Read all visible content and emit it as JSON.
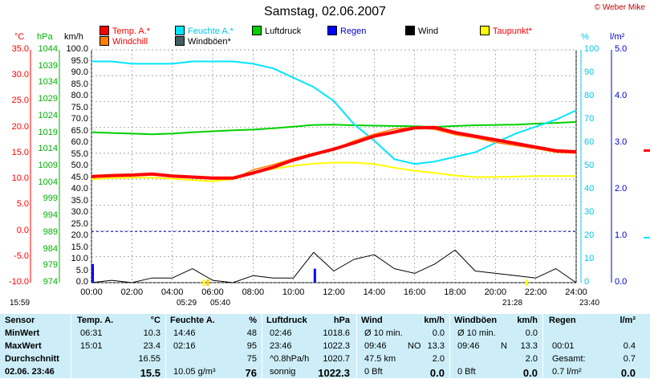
{
  "title": "Samstag, 02.06.2007",
  "copyright": "© Weber Mike",
  "legend": [
    {
      "label": "Temp. A.*",
      "color": "#ff0000",
      "text_color": "#ff0000"
    },
    {
      "label": "Feuchte A.*",
      "color": "#00e5ff",
      "text_color": "#00c8e6"
    },
    {
      "label": "Luftdruck",
      "color": "#00d000",
      "text_color": "#000000"
    },
    {
      "label": "Regen",
      "color": "#0000ff",
      "text_color": "#0000cc"
    },
    {
      "label": "Wind",
      "color": "#000000",
      "text_color": "#000000"
    },
    {
      "label": "Taupunkt*",
      "color": "#ffff00",
      "text_color": "#ff0000"
    },
    {
      "label": "Windchill",
      "color": "#ff8000",
      "text_color": "#ff0000"
    },
    {
      "label": "Windböen*",
      "color": "#406060",
      "text_color": "#000000"
    }
  ],
  "units": {
    "temp": "°C",
    "pressure": "hPa",
    "wind": "km/h",
    "humidity": "%",
    "rain": "l/m²"
  },
  "axes": {
    "temp_ticks": [
      "35.0",
      "30.0",
      "25.0",
      "20.0",
      "15.0",
      "10.0",
      "5.0",
      "0.0",
      "-5.0",
      "-10.0"
    ],
    "pressure_ticks": [
      "1044",
      "1039",
      "1034",
      "1029",
      "1024",
      "1019",
      "1014",
      "1009",
      "1004",
      "999",
      "994",
      "989",
      "984",
      "979",
      "974"
    ],
    "wind_ticks": [
      "100.0",
      "95.0",
      "90.0",
      "85.0",
      "80.0",
      "75.0",
      "70.0",
      "65.0",
      "60.0",
      "55.0",
      "50.0",
      "45.0",
      "40.0",
      "35.0",
      "30.0",
      "25.0",
      "20.0",
      "15.0",
      "10.0",
      "5.0",
      "0.0"
    ],
    "humidity_ticks": [
      "100",
      "90",
      "80",
      "70",
      "60",
      "50",
      "40",
      "30",
      "20",
      "10",
      "0"
    ],
    "rain_ticks": [
      "5.0",
      "4.0",
      "3.0",
      "2.0",
      "1.0",
      "0.0"
    ],
    "time_ticks": [
      "00:00",
      "02:00",
      "04:00",
      "06:00",
      "08:00",
      "10:00",
      "12:00",
      "14:00",
      "16:00",
      "18:00",
      "20:00",
      "22:00",
      "24:00"
    ]
  },
  "sun": {
    "left_time": "15:59",
    "sunrise": "05:29",
    "sunrise2": "05:40",
    "sunset": "21:28",
    "sunset2": "23:40"
  },
  "chart_data": {
    "type": "line",
    "x": [
      "00:00",
      "01:00",
      "02:00",
      "03:00",
      "04:00",
      "05:00",
      "06:00",
      "07:00",
      "08:00",
      "09:00",
      "10:00",
      "11:00",
      "12:00",
      "13:00",
      "14:00",
      "15:00",
      "16:00",
      "17:00",
      "18:00",
      "19:00",
      "20:00",
      "21:00",
      "22:00",
      "23:00",
      "24:00"
    ],
    "series": [
      {
        "name": "Temp. A.*",
        "axis": "temp",
        "color": "#ff0000",
        "values": [
          10.5,
          10.7,
          10.8,
          11.0,
          10.6,
          10.4,
          10.2,
          10.2,
          11.2,
          12.3,
          13.7,
          14.8,
          15.8,
          17.0,
          18.3,
          19.1,
          19.9,
          20.0,
          19.0,
          18.3,
          17.6,
          16.9,
          16.2,
          15.5,
          15.3
        ]
      },
      {
        "name": "Windchill",
        "axis": "temp",
        "color": "#ff8000",
        "values": [
          10.3,
          10.6,
          10.7,
          10.9,
          10.5,
          10.3,
          10.0,
          10.0,
          11.8,
          12.8,
          14.0,
          15.0,
          15.8,
          17.4,
          18.7,
          19.7,
          20.0,
          19.6,
          18.6,
          18.0,
          17.1,
          16.5,
          15.9,
          15.2,
          15.0
        ]
      },
      {
        "name": "Taupunkt*",
        "axis": "temp",
        "color": "#ffff00",
        "values": [
          10.0,
          10.2,
          10.3,
          10.3,
          10.1,
          9.8,
          9.6,
          10.0,
          11.2,
          12.0,
          12.6,
          13.0,
          13.2,
          13.2,
          12.9,
          12.2,
          11.6,
          11.2,
          10.7,
          10.4,
          10.4,
          10.5,
          10.6,
          10.6,
          10.6
        ]
      },
      {
        "name": "Feuchte A.*",
        "axis": "humidity",
        "values": [
          95,
          95,
          94,
          94,
          94,
          95,
          95,
          95,
          94,
          92,
          88,
          84,
          78,
          68,
          61,
          53,
          51,
          52,
          54,
          56,
          60,
          64,
          67,
          70,
          74
        ]
      },
      {
        "name": "Luftdruck",
        "axis": "pressure",
        "values": [
          1019.2,
          1019.0,
          1018.8,
          1018.6,
          1018.8,
          1019.2,
          1019.5,
          1019.8,
          1020.0,
          1020.4,
          1020.9,
          1021.4,
          1021.5,
          1021.3,
          1021.2,
          1021.1,
          1021.0,
          1020.8,
          1021.1,
          1021.3,
          1021.4,
          1021.5,
          1021.8,
          1022.0,
          1022.3
        ]
      },
      {
        "name": "Wind",
        "axis": "wind",
        "values": [
          0,
          1,
          0,
          2,
          2,
          6,
          1,
          0,
          3,
          2,
          2,
          13,
          5,
          10,
          12,
          6,
          4,
          8,
          14,
          5,
          4,
          3,
          2,
          6,
          0
        ]
      },
      {
        "name": "Regen",
        "axis": "rain",
        "values": [
          0.4,
          0,
          0,
          0,
          0,
          0,
          0,
          0,
          0,
          0,
          0,
          0.3,
          0,
          0,
          0,
          0,
          0,
          0,
          0,
          0,
          0,
          0,
          0,
          0,
          0
        ]
      }
    ],
    "dashed_blue_line_humidity": 22
  },
  "table": {
    "headers": {
      "sensor": "Sensor",
      "temp": "Temp. A.",
      "temp_unit": "°C",
      "feuchte": "Feuchte A.",
      "feuchte_unit": "%",
      "luft": "Luftdruck",
      "luft_unit": "hPa",
      "wind": "Wind",
      "wind_unit": "km/h",
      "boen": "Windböen",
      "boen_unit": "km/h",
      "regen": "Regen",
      "regen_unit": "l/m²"
    },
    "rows": [
      {
        "label": "MinWert",
        "temp_time": "06:31",
        "temp_val": "10.3",
        "feuchte_time": "14:46",
        "feuchte_val": "48",
        "luft_time": "02:46",
        "luft_val": "1018.6",
        "wind_lbl": "Ø 10 min.",
        "wind_val": "0.0",
        "boen_lbl": "Ø 10 min.",
        "boen_val": "0.0",
        "regen_lbl": "",
        "regen_val": ""
      },
      {
        "label": "MaxWert",
        "temp_time": "15:01",
        "temp_val": "23.4",
        "feuchte_time": "02:16",
        "feuchte_val": "95",
        "luft_time": "23:46",
        "luft_val": "1022.3",
        "wind_lbl": "09:46",
        "wind_dir": "NO",
        "wind_val": "13.3",
        "boen_lbl": "09:46",
        "boen_dir": "N",
        "boen_val": "13.3",
        "regen_lbl": "00:01",
        "regen_val": "0.4"
      },
      {
        "label": "Durchschnitt",
        "temp_time": "",
        "temp_val": "16.55",
        "feuchte_time": "",
        "feuchte_val": "75",
        "luft_time": "^0.8hPa/h",
        "luft_val": "1020.7",
        "wind_lbl": "47.5 km",
        "wind_val": "2.0",
        "boen_lbl": "",
        "boen_val": "2.0",
        "regen_lbl": "Gesamt:",
        "regen_val": "0.7"
      },
      {
        "label": "02.06. 23:46",
        "temp_time": "",
        "temp_val": "15.5",
        "feuchte_time": "10.05 g/m³",
        "feuchte_val": "76",
        "luft_time": "sonnig",
        "luft_val": "1022.3",
        "wind_lbl": "0 Bft",
        "wind_val": "0.0",
        "boen_lbl": "0 Bft",
        "boen_val": "0.0",
        "regen_lbl": "0.7 l/m²",
        "regen_val": "0.0"
      }
    ]
  }
}
